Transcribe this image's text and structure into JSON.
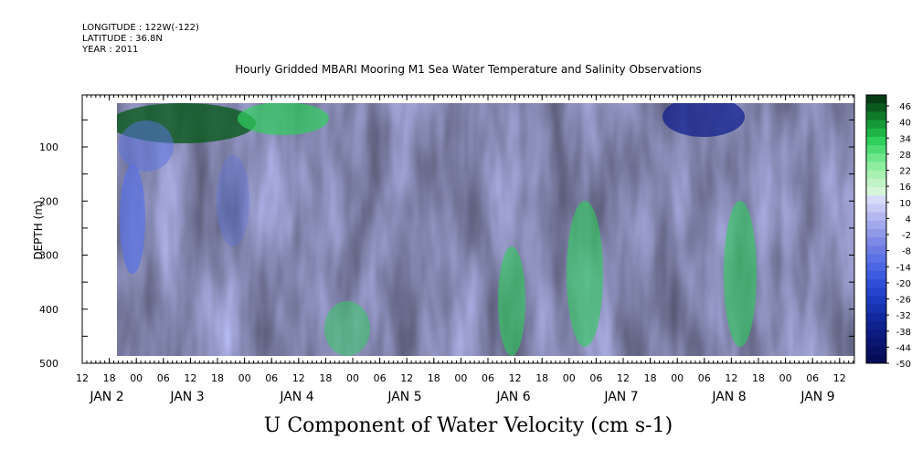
{
  "header": {
    "longitude": "LONGITUDE : 122W(-122)",
    "latitude": "LATITUDE : 36.8N",
    "year": "YEAR : 2011"
  },
  "chart_data": {
    "type": "heatmap",
    "title": "Hourly Gridded MBARI Mooring M1 Sea Water Temperature and Salinity Observations",
    "variable_title": "U Component of Water Velocity (cm s-1)",
    "ylabel": "DEPTH (m)",
    "ylim": [
      500,
      0
    ],
    "y_ticks": [
      100,
      200,
      300,
      400,
      500
    ],
    "x_hour_ticks": [
      "12",
      "18",
      "00",
      "06",
      "12",
      "18",
      "00",
      "06",
      "12",
      "18",
      "00",
      "06",
      "12",
      "18",
      "00",
      "06",
      "12",
      "18",
      "00",
      "06",
      "12",
      "18",
      "00",
      "06",
      "12",
      "18",
      "00",
      "06",
      "12",
      "18",
      "00",
      "06",
      "12",
      "18",
      "00",
      "06",
      "12"
    ],
    "x_day_labels": [
      "JAN  2",
      "JAN  3",
      "JAN  4",
      "JAN  5",
      "JAN  6",
      "JAN  7",
      "JAN  8",
      "JAN  9"
    ],
    "colorbar_labels": [
      "46",
      "40",
      "34",
      "28",
      "22",
      "16",
      "10",
      "4",
      "-2",
      "-8",
      "-14",
      "-20",
      "-26",
      "-32",
      "-38",
      "-44",
      "-50"
    ],
    "colors": {
      "strong_positive": "#0a5a1e",
      "positive": "#2fcf5c",
      "weak_positive": "#9ee8a6",
      "weak_negative": "#b4b8f0",
      "negative": "#5a72e6",
      "strong_negative": "#0a1a8c"
    }
  }
}
